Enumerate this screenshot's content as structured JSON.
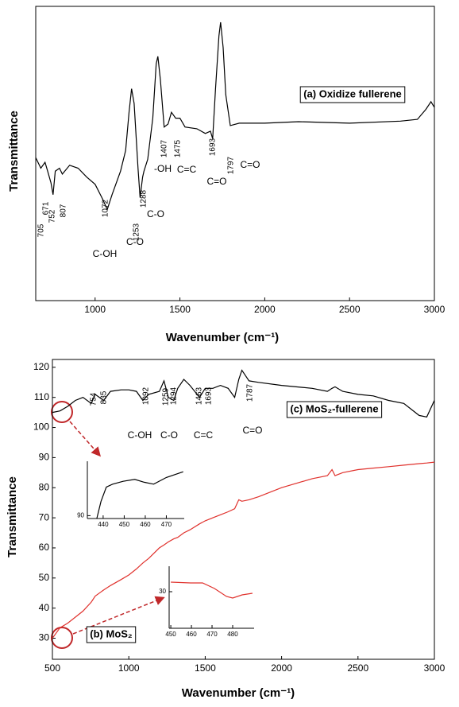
{
  "chart_data": [
    {
      "type": "line",
      "xlabel": "Wavenumber (cm⁻¹)",
      "ylabel": "Transmittance",
      "xlim": [
        650,
        3000
      ],
      "xticks": [
        1000,
        1500,
        2000,
        2500,
        3000
      ],
      "ylim": [
        0,
        100
      ],
      "x": [
        650,
        680,
        705,
        720,
        740,
        752,
        765,
        790,
        807,
        850,
        900,
        950,
        1000,
        1040,
        1072,
        1100,
        1150,
        1180,
        1200,
        1215,
        1230,
        1253,
        1265,
        1280,
        1288,
        1310,
        1340,
        1360,
        1370,
        1385,
        1407,
        1430,
        1450,
        1475,
        1500,
        1530,
        1600,
        1650,
        1680,
        1693,
        1710,
        1730,
        1740,
        1755,
        1770,
        1797,
        1850,
        2000,
        2200,
        2500,
        2800,
        2900,
        2950,
        2980,
        3000
      ],
      "series": [
        {
          "name": "(a) Oxidize fullerene",
          "color": "#000000",
          "values": [
            48.6,
            45,
            47,
            44,
            40,
            36,
            44,
            45,
            43,
            46,
            45,
            42,
            39.5,
            35,
            31,
            36,
            44,
            51,
            64,
            72,
            67,
            45,
            35,
            42,
            44,
            48,
            62,
            80.5,
            83,
            75,
            59,
            60,
            64,
            62,
            62,
            59,
            58.4,
            56.8,
            57.6,
            55,
            72,
            90,
            94.6,
            86,
            70,
            59.5,
            60.3,
            60.3,
            60.8,
            60.3,
            61,
            61.6,
            65,
            67.6,
            65.7
          ]
        }
      ],
      "peak_labels": [
        "705",
        "671",
        "752",
        "807",
        "1072",
        "1253",
        "1288",
        "1407",
        "1475",
        "1693",
        "1797"
      ],
      "group_labels": [
        "C-OH",
        "C-O",
        "C-O",
        "-OH",
        "C=C",
        "C=O",
        "C=O"
      ]
    },
    {
      "type": "line",
      "xlabel": "Wavenumber (cm⁻¹)",
      "ylabel": "Transmittance",
      "xlim": [
        500,
        3000
      ],
      "xticks": [
        500,
        1000,
        1500,
        2000,
        2500,
        3000
      ],
      "ylim": [
        23,
        122.6
      ],
      "yticks": [
        30,
        40,
        50,
        60,
        70,
        80,
        90,
        100,
        110,
        120
      ],
      "x": [
        500,
        550,
        600,
        650,
        700,
        754,
        780,
        835,
        880,
        950,
        1000,
        1050,
        1092,
        1130,
        1200,
        1230,
        1259,
        1294,
        1320,
        1360,
        1400,
        1463,
        1500,
        1550,
        1600,
        1650,
        1693,
        1720,
        1740,
        1787,
        1850,
        2000,
        2200,
        2300,
        2330,
        2350,
        2400,
        2500,
        2600,
        2700,
        2800,
        2900,
        2950,
        3000
      ],
      "series": [
        {
          "name": "(c) MoS₂-fullerene",
          "color": "#000000",
          "values": [
            105,
            105.5,
            107,
            109,
            110,
            108,
            111,
            109,
            112,
            112.5,
            112.5,
            112,
            109,
            111,
            112,
            115.5,
            110,
            109,
            113,
            116,
            114,
            110,
            113,
            113,
            114,
            113,
            110,
            116,
            119,
            115.5,
            115,
            114,
            113,
            112,
            113,
            113.5,
            112,
            111,
            110.5,
            109,
            108,
            104,
            103.5,
            109
          ]
        },
        {
          "name": "(b) MoS₂",
          "color": "#e0312c",
          "values": [
            30,
            33.5,
            35,
            37,
            39,
            42,
            44,
            46,
            47.5,
            49.5,
            51,
            53,
            55,
            56.5,
            60,
            61,
            62,
            63,
            63.5,
            65,
            66,
            68,
            69,
            70,
            71,
            72,
            73,
            76,
            75.5,
            76,
            77,
            80,
            83,
            84,
            86,
            84,
            85,
            86,
            86.5,
            87,
            87.5,
            88,
            88.2,
            88.5
          ]
        }
      ],
      "peak_labels": [
        "754",
        "835",
        "1092",
        "1259",
        "1294",
        "1463",
        "1693",
        "1787"
      ],
      "group_labels": [
        "C-OH",
        "C-O",
        "C=C",
        "C=O"
      ]
    },
    {
      "type": "line",
      "xlim": [
        432.5,
        478.5
      ],
      "xticks": [
        440,
        450,
        460,
        470
      ],
      "ylim": [
        89.7,
        95.7
      ],
      "yticks": [
        90
      ],
      "x": [
        437,
        439,
        441.5,
        444.5,
        449.5,
        455,
        459.5,
        464,
        470,
        478
      ],
      "series": [
        {
          "color": "#000000",
          "values": [
            89.7,
            91.5,
            93,
            93.3,
            93.6,
            93.8,
            93.5,
            93.3,
            94,
            94.6
          ]
        }
      ]
    },
    {
      "type": "line",
      "xlim": [
        449.2,
        490.4
      ],
      "xticks": [
        450,
        460,
        470,
        480
      ],
      "ylim": [
        25.4,
        33.2
      ],
      "yticks": [
        30
      ],
      "x": [
        450,
        459.6,
        465.4,
        471.2,
        477,
        480,
        484.6,
        489.6
      ],
      "series": [
        {
          "color": "#e0312c",
          "values": [
            31.2,
            31.1,
            31.1,
            30.4,
            29.4,
            29.2,
            29.6,
            29.8
          ]
        }
      ]
    }
  ]
}
